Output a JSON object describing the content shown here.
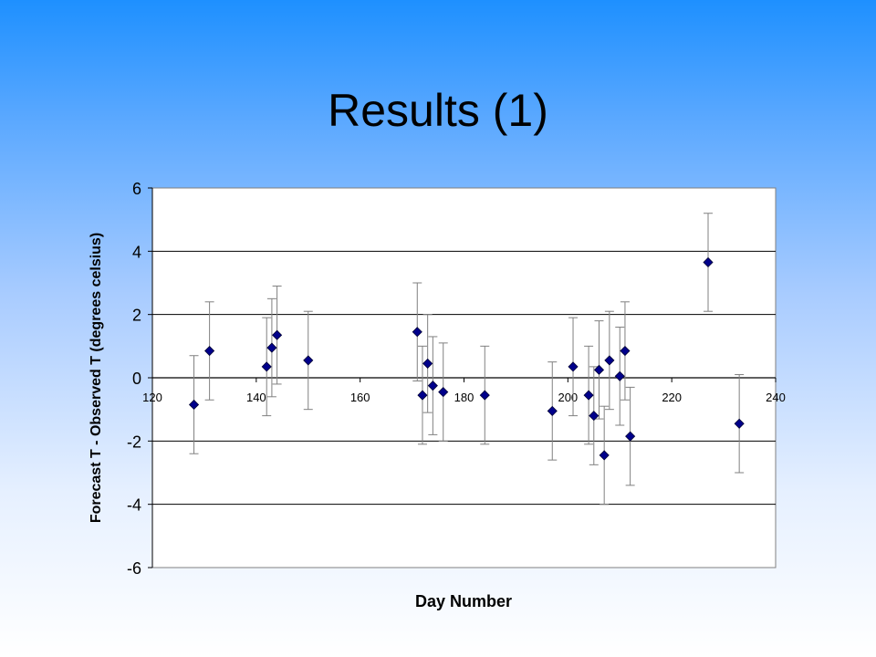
{
  "slide": {
    "title": "Results (1)"
  },
  "chart_data": {
    "type": "scatter",
    "title": "",
    "xlabel": "Day Number",
    "ylabel": "Forecast T - Observed T (degrees celsius)",
    "xlim": [
      120,
      240
    ],
    "ylim": [
      -6,
      6
    ],
    "x_ticks": [
      120,
      140,
      160,
      180,
      200,
      220,
      240
    ],
    "y_ticks": [
      -6,
      -4,
      -2,
      0,
      2,
      4,
      6
    ],
    "grid": "horizontal",
    "legend": "none",
    "colors": {
      "marker": "#00008b",
      "error_bar": "#808080",
      "plot_bg": "#ffffff",
      "grid": "#000000"
    },
    "series": [
      {
        "points": [
          {
            "x": 128,
            "y": -0.85,
            "err": 1.55
          },
          {
            "x": 131,
            "y": 0.85,
            "err": 1.55
          },
          {
            "x": 142,
            "y": 0.35,
            "err": 1.55
          },
          {
            "x": 143,
            "y": 0.95,
            "err": 1.55
          },
          {
            "x": 144,
            "y": 1.35,
            "err": 1.55
          },
          {
            "x": 150,
            "y": 0.55,
            "err": 1.55
          },
          {
            "x": 171,
            "y": 1.45,
            "err": 1.55
          },
          {
            "x": 172,
            "y": -0.55,
            "err": 1.55
          },
          {
            "x": 173,
            "y": 0.45,
            "err": 1.55
          },
          {
            "x": 174,
            "y": -0.25,
            "err": 1.55
          },
          {
            "x": 176,
            "y": -0.45,
            "err": 1.55
          },
          {
            "x": 184,
            "y": -0.55,
            "err": 1.55
          },
          {
            "x": 197,
            "y": -1.05,
            "err": 1.55
          },
          {
            "x": 201,
            "y": 0.35,
            "err": 1.55
          },
          {
            "x": 204,
            "y": -0.55,
            "err": 1.55
          },
          {
            "x": 205,
            "y": -1.2,
            "err": 1.55
          },
          {
            "x": 206,
            "y": 0.25,
            "err": 1.55
          },
          {
            "x": 207,
            "y": -2.45,
            "err": 1.55
          },
          {
            "x": 208,
            "y": 0.55,
            "err": 1.55
          },
          {
            "x": 210,
            "y": 0.05,
            "err": 1.55
          },
          {
            "x": 211,
            "y": 0.85,
            "err": 1.55
          },
          {
            "x": 212,
            "y": -1.85,
            "err": 1.55
          },
          {
            "x": 227,
            "y": 3.65,
            "err": 1.55
          },
          {
            "x": 233,
            "y": -1.45,
            "err": 1.55
          }
        ]
      }
    ]
  }
}
